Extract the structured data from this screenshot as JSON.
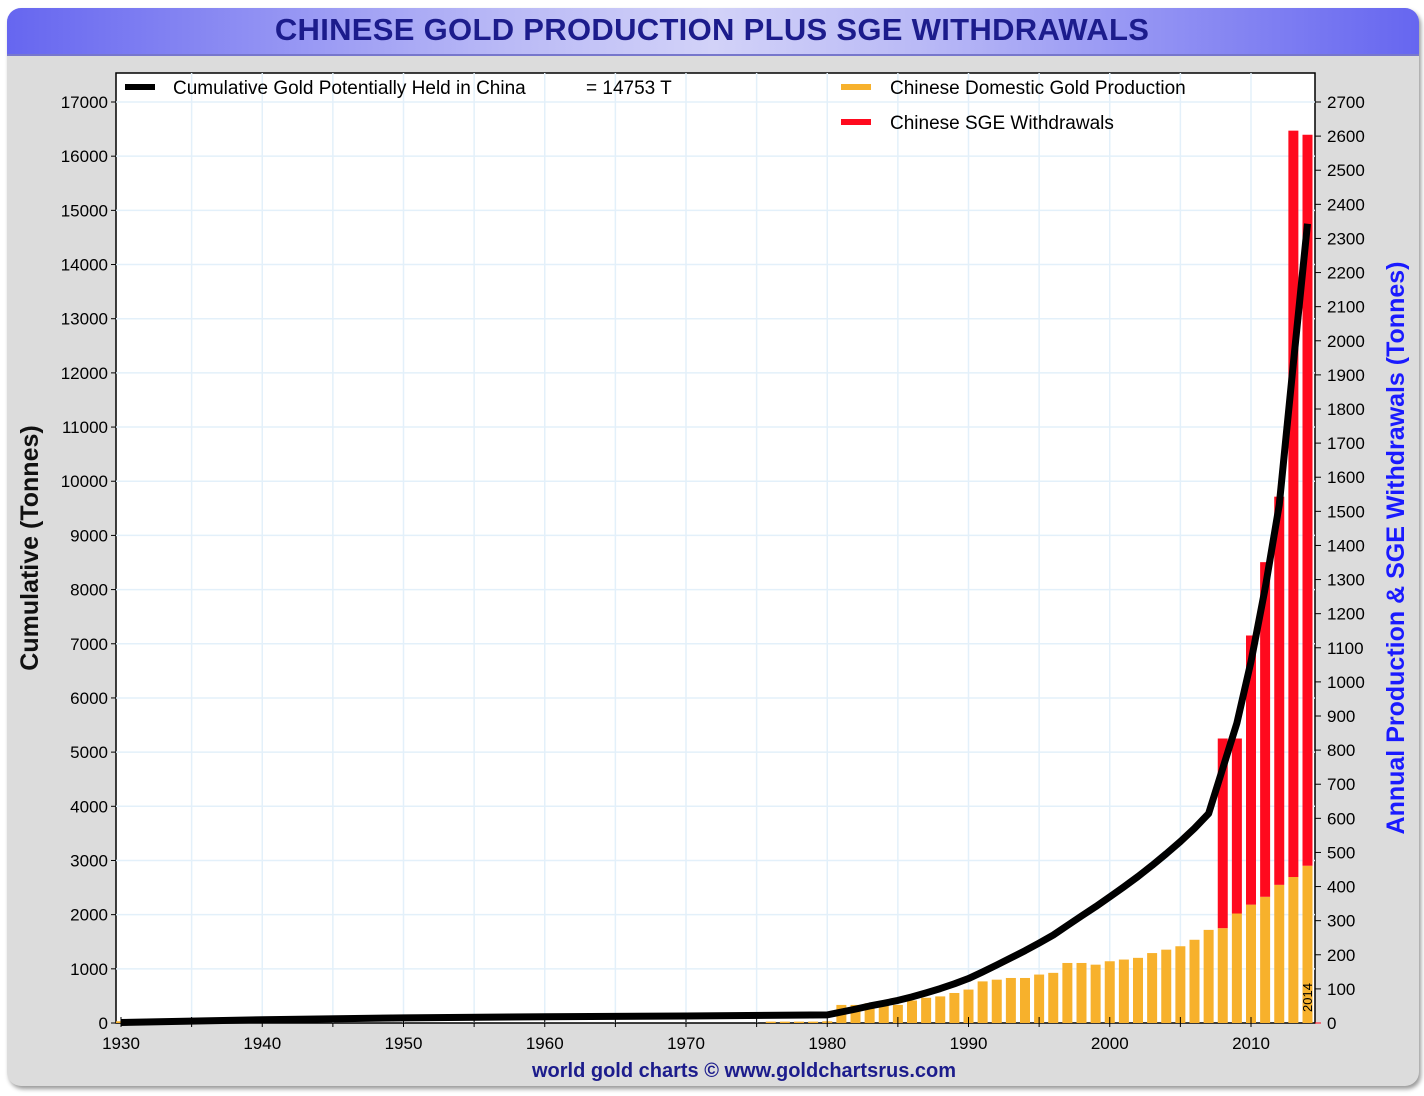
{
  "chart_data": {
    "type": "bar",
    "title": "CHINESE GOLD PRODUCTION PLUS SGE WITHDRAWALS",
    "ylabel_left": "Cumulative (Tonnes)",
    "ylabel_right": "Annual Production & SGE Withdrawals (Tonnes)",
    "footer": "world gold charts © www.goldchartsrus.com",
    "last_year_label": "2014",
    "xlim": [
      1930,
      2014
    ],
    "ylim_left": [
      0,
      17000
    ],
    "ylim_right": [
      0,
      2700
    ],
    "x_ticks": [
      "1930",
      "1940",
      "1950",
      "1960",
      "1970",
      "1980",
      "1990",
      "2000",
      "2010"
    ],
    "y_ticks_left": [
      "0",
      "1000",
      "2000",
      "3000",
      "4000",
      "5000",
      "6000",
      "7000",
      "8000",
      "9000",
      "10000",
      "11000",
      "12000",
      "13000",
      "14000",
      "15000",
      "16000",
      "17000"
    ],
    "y_ticks_right": [
      "0",
      "100",
      "200",
      "300",
      "400",
      "500",
      "600",
      "700",
      "800",
      "900",
      "1000",
      "1100",
      "1200",
      "1300",
      "1400",
      "1500",
      "1600",
      "1700",
      "1800",
      "1900",
      "2000",
      "2100",
      "2200",
      "2300",
      "2400",
      "2500",
      "2600",
      "2700"
    ],
    "grid": true,
    "legend": [
      {
        "label": "Cumulative Gold Potentially Held in China",
        "value_text": "= 14753 T",
        "color": "#000000",
        "position": "top-left"
      },
      {
        "label": "Chinese Domestic Gold Production",
        "color": "#f7b12c",
        "position": "top-right"
      },
      {
        "label": "Chinese SGE Withdrawals",
        "color": "#ff0a1e",
        "position": "top-right"
      }
    ],
    "colors": {
      "production": "#f7b12c",
      "sge": "#ff0a1e",
      "cumulative": "#000000",
      "right_axis_label": "#1a1aff",
      "title": "#1c1c8c",
      "footer": "#1c1c8c"
    },
    "series": [
      {
        "name": "Chinese Domestic Gold Production",
        "axis": "right",
        "x": [
          1930,
          1940,
          1976,
          1977,
          1978,
          1979,
          1980,
          1981,
          1982,
          1983,
          1984,
          1985,
          1986,
          1987,
          1988,
          1989,
          1990,
          1991,
          1992,
          1993,
          1994,
          1995,
          1996,
          1997,
          1998,
          1999,
          2000,
          2001,
          2002,
          2003,
          2004,
          2005,
          2006,
          2007,
          2008,
          2009,
          2010,
          2011,
          2012,
          2013,
          2014
        ],
        "values": [
          5,
          5,
          4,
          4,
          4,
          4,
          5,
          53,
          53,
          58,
          50,
          53,
          66,
          74,
          78,
          88,
          98,
          122,
          127,
          132,
          132,
          142,
          147,
          176,
          176,
          171,
          181,
          186,
          191,
          205,
          215,
          225,
          244,
          273,
          278,
          321,
          347,
          370,
          405,
          428,
          461
        ]
      },
      {
        "name": "Chinese SGE Withdrawals",
        "axis": "right",
        "x": [
          2008,
          2009,
          2010,
          2011,
          2012,
          2013,
          2014
        ],
        "values": [
          556,
          513,
          789,
          981,
          1138,
          2188,
          2143
        ]
      },
      {
        "name": "Cumulative Gold Potentially Held in China",
        "axis": "left",
        "x": [
          1930,
          1940,
          1950,
          1960,
          1970,
          1980,
          1981,
          1982,
          1983,
          1984,
          1985,
          1986,
          1987,
          1988,
          1989,
          1990,
          1991,
          1992,
          1993,
          1994,
          1995,
          1996,
          1997,
          1998,
          1999,
          2000,
          2001,
          2002,
          2003,
          2004,
          2005,
          2006,
          2007,
          2008,
          2009,
          2010,
          2011,
          2012,
          2013,
          2014
        ],
        "values": [
          10,
          60,
          95,
          115,
          130,
          150,
          203,
          256,
          314,
          364,
          417,
          483,
          557,
          635,
          723,
          821,
          943,
          1070,
          1202,
          1334,
          1476,
          1623,
          1799,
          1975,
          2146,
          2327,
          2513,
          2704,
          2909,
          3124,
          3349,
          3593,
          3866,
          4700,
          5534,
          6670,
          8021,
          9564,
          12180,
          14753
        ]
      }
    ]
  }
}
